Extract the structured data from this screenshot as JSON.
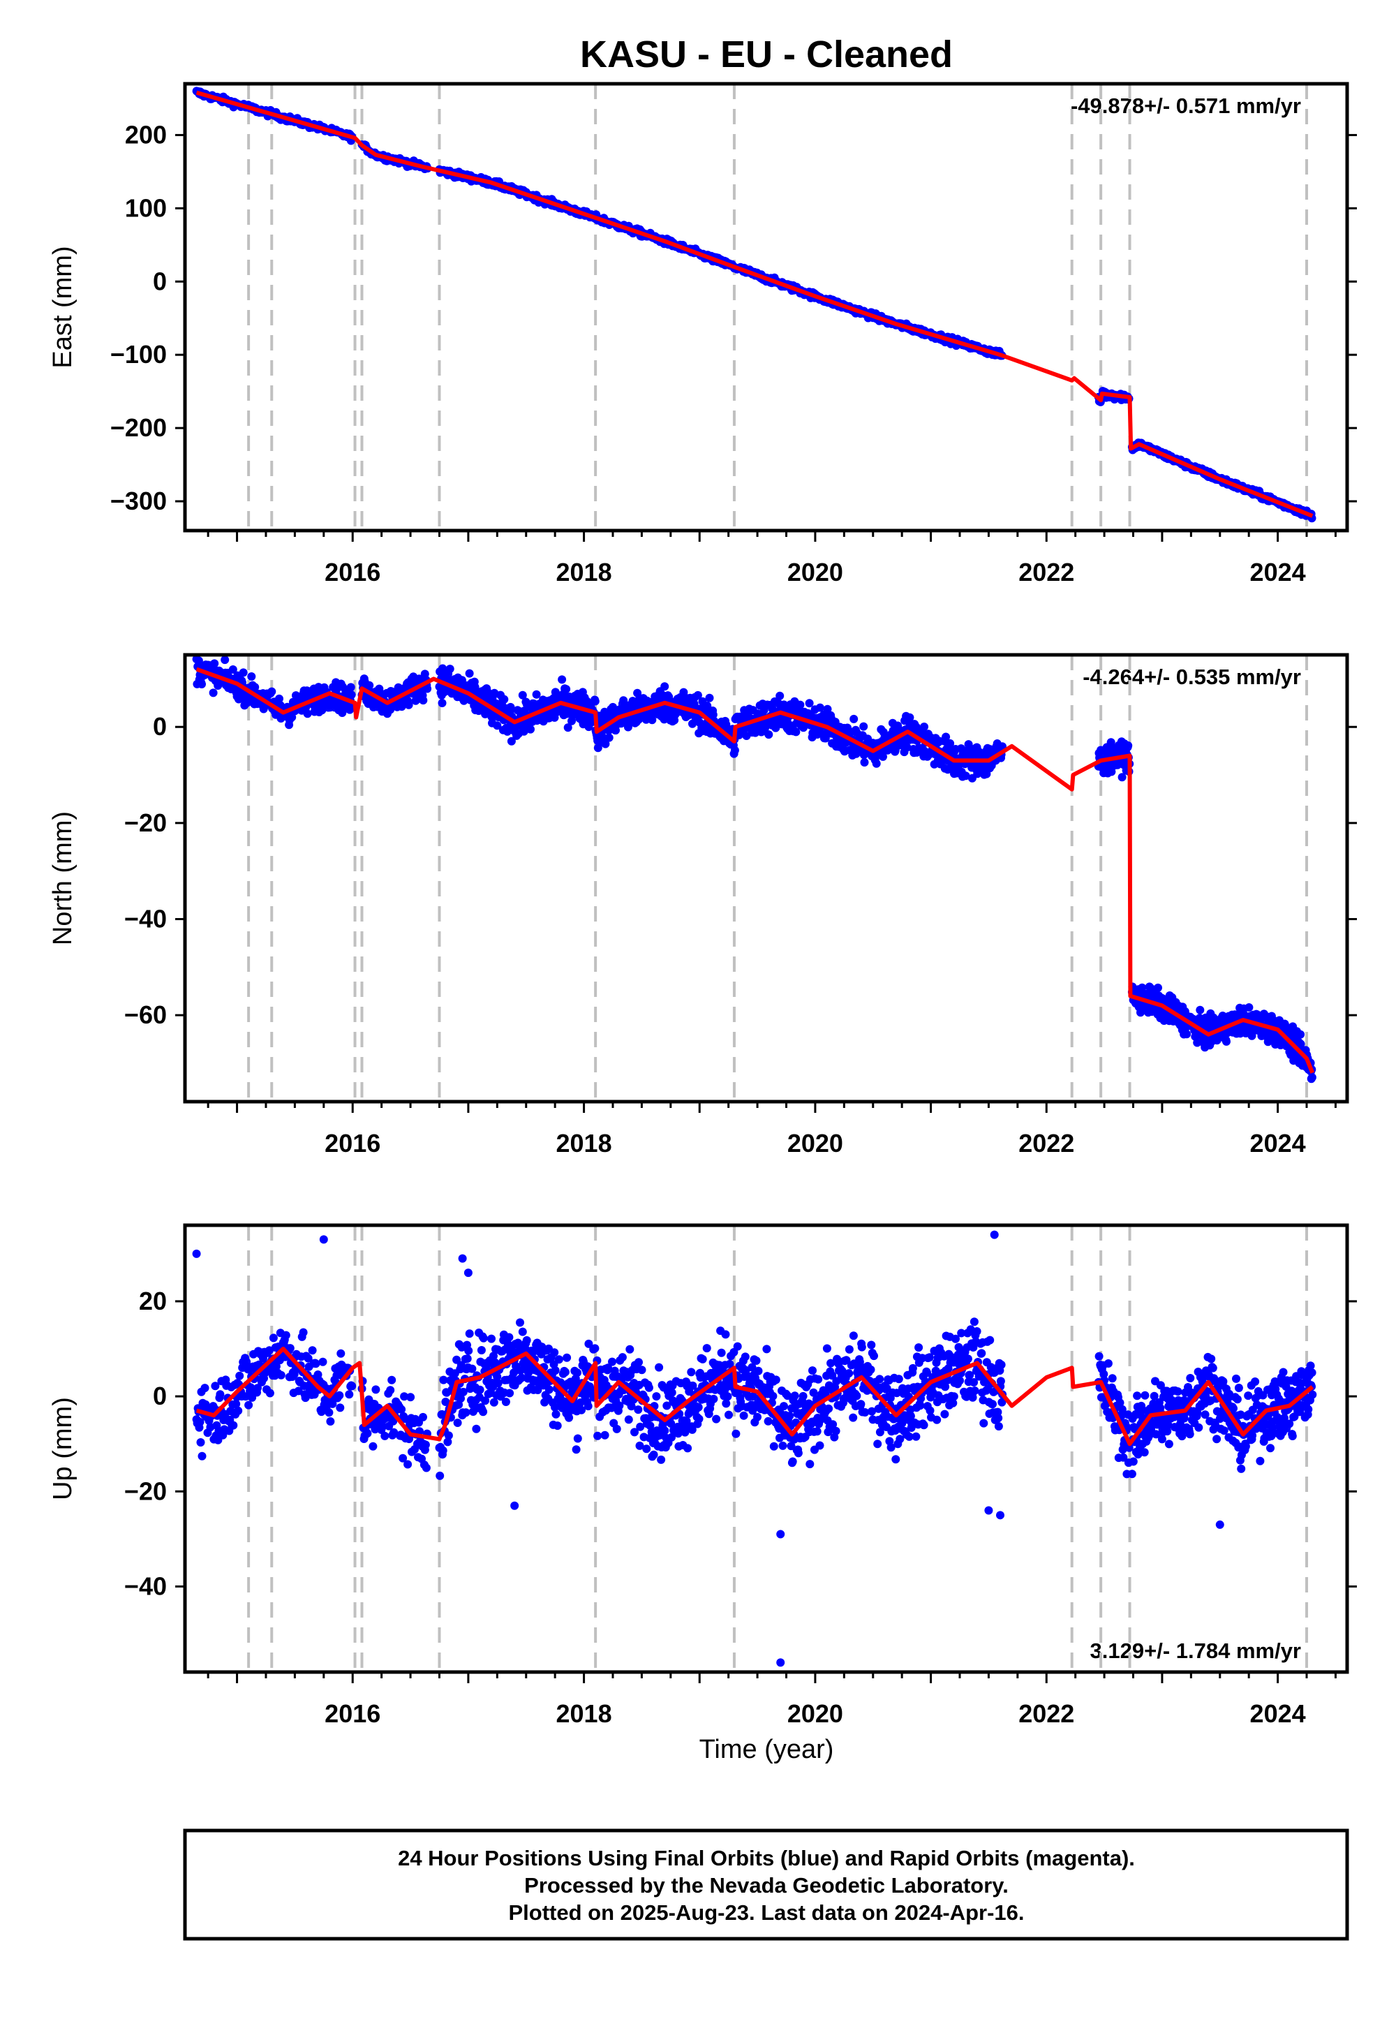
{
  "title": "KASU  - EU - Cleaned",
  "colors": {
    "data_points": "#0000ff",
    "model_line": "#ff0000",
    "event_lines": "#c0c0c0",
    "frame": "#000000"
  },
  "xlabel": "Time (year)",
  "footer": {
    "line1": "24 Hour Positions Using Final Orbits (blue) and Rapid Orbits (magenta).",
    "line2": "Processed by the Nevada Geodetic Laboratory.",
    "line3": "Plotted on 2025-Aug-23. Last data on 2024-Apr-16."
  },
  "chart_data": [
    {
      "type": "scatter",
      "panel": "east",
      "ylabel": "East (mm)",
      "rate_label": "-49.878+/- 0.571 mm/yr",
      "rate_position": "top-right",
      "xlim": [
        2014.55,
        2024.6
      ],
      "ylim": [
        -340,
        270
      ],
      "x_ticks": [
        2016,
        2018,
        2020,
        2022,
        2024
      ],
      "y_ticks": [
        -300,
        -200,
        -100,
        0,
        100,
        200
      ],
      "event_lines": [
        2015.1,
        2015.3,
        2016.02,
        2016.08,
        2016.75,
        2018.1,
        2019.3,
        2022.22,
        2022.47,
        2022.72,
        2024.25
      ],
      "data_segments": [
        {
          "start": 2014.65,
          "end": 2016.0,
          "step": 0.008,
          "noise": 3
        },
        {
          "start": 2016.08,
          "end": 2016.65,
          "step": 0.008,
          "noise": 3
        },
        {
          "start": 2016.75,
          "end": 2021.62,
          "step": 0.006,
          "noise": 3
        },
        {
          "start": 2022.45,
          "end": 2022.72,
          "step": 0.006,
          "noise": 4
        },
        {
          "start": 2022.74,
          "end": 2024.3,
          "step": 0.005,
          "noise": 3
        }
      ],
      "model_line": [
        [
          2014.65,
          258
        ],
        [
          2016.0,
          197
        ],
        [
          2016.02,
          196
        ],
        [
          2016.08,
          186
        ],
        [
          2016.2,
          173
        ],
        [
          2016.6,
          157
        ],
        [
          2017.2,
          135
        ],
        [
          2018.1,
          87
        ],
        [
          2018.7,
          55
        ],
        [
          2019.3,
          20
        ],
        [
          2020.0,
          -20
        ],
        [
          2020.7,
          -58
        ],
        [
          2021.6,
          -100
        ],
        [
          2022.22,
          -135
        ],
        [
          2022.24,
          -132
        ],
        [
          2022.47,
          -162
        ],
        [
          2022.48,
          -153
        ],
        [
          2022.72,
          -158
        ],
        [
          2022.73,
          -228
        ],
        [
          2022.8,
          -222
        ],
        [
          2023.5,
          -270
        ],
        [
          2024.3,
          -320
        ]
      ]
    },
    {
      "type": "scatter",
      "panel": "north",
      "ylabel": "North (mm)",
      "rate_label": "-4.264+/- 0.535 mm/yr",
      "rate_position": "top-right",
      "xlim": [
        2014.55,
        2024.6
      ],
      "ylim": [
        -78,
        15
      ],
      "x_ticks": [
        2016,
        2018,
        2020,
        2022,
        2024
      ],
      "y_ticks": [
        -60,
        -40,
        -20,
        0
      ],
      "event_lines": [
        2015.1,
        2015.3,
        2016.02,
        2016.08,
        2016.75,
        2018.1,
        2019.3,
        2022.22,
        2022.47,
        2022.72,
        2024.25
      ],
      "data_segments": [
        {
          "start": 2014.65,
          "end": 2016.0,
          "step": 0.005,
          "noise": 2
        },
        {
          "start": 2016.08,
          "end": 2016.65,
          "step": 0.005,
          "noise": 2
        },
        {
          "start": 2016.75,
          "end": 2021.62,
          "step": 0.004,
          "noise": 2.5
        },
        {
          "start": 2022.45,
          "end": 2022.72,
          "step": 0.004,
          "noise": 2
        },
        {
          "start": 2022.74,
          "end": 2024.3,
          "step": 0.0035,
          "noise": 2
        }
      ],
      "model_line": [
        [
          2014.65,
          12
        ],
        [
          2015.0,
          9
        ],
        [
          2015.4,
          3
        ],
        [
          2015.8,
          7
        ],
        [
          2016.02,
          5
        ],
        [
          2016.03,
          2
        ],
        [
          2016.08,
          8
        ],
        [
          2016.3,
          5
        ],
        [
          2016.7,
          10
        ],
        [
          2017.0,
          7
        ],
        [
          2017.4,
          1
        ],
        [
          2017.8,
          5
        ],
        [
          2018.1,
          3
        ],
        [
          2018.11,
          -1
        ],
        [
          2018.3,
          2
        ],
        [
          2018.7,
          5
        ],
        [
          2019.0,
          3
        ],
        [
          2019.3,
          -3
        ],
        [
          2019.31,
          0
        ],
        [
          2019.7,
          3
        ],
        [
          2020.1,
          0
        ],
        [
          2020.5,
          -5
        ],
        [
          2020.8,
          -1
        ],
        [
          2021.2,
          -7
        ],
        [
          2021.5,
          -7
        ],
        [
          2021.7,
          -4
        ],
        [
          2022.22,
          -13
        ],
        [
          2022.23,
          -10
        ],
        [
          2022.47,
          -7
        ],
        [
          2022.72,
          -6
        ],
        [
          2022.725,
          -56
        ],
        [
          2023.0,
          -58
        ],
        [
          2023.4,
          -64
        ],
        [
          2023.7,
          -61
        ],
        [
          2024.0,
          -63
        ],
        [
          2024.25,
          -69
        ],
        [
          2024.3,
          -72
        ]
      ]
    },
    {
      "type": "scatter",
      "panel": "up",
      "ylabel": "Up (mm)",
      "rate_label": "3.129+/- 1.784 mm/yr",
      "rate_position": "bottom-right",
      "xlim": [
        2014.55,
        2024.6
      ],
      "ylim": [
        -58,
        36
      ],
      "x_ticks": [
        2016,
        2018,
        2020,
        2022,
        2024
      ],
      "y_ticks": [
        -40,
        -20,
        0,
        20
      ],
      "event_lines": [
        2015.1,
        2015.3,
        2016.02,
        2016.08,
        2016.75,
        2018.1,
        2019.3,
        2022.22,
        2022.47,
        2022.72,
        2024.25
      ],
      "data_segments": [
        {
          "start": 2014.65,
          "end": 2016.0,
          "step": 0.006,
          "noise": 5
        },
        {
          "start": 2016.08,
          "end": 2016.65,
          "step": 0.006,
          "noise": 5
        },
        {
          "start": 2016.75,
          "end": 2021.62,
          "step": 0.0045,
          "noise": 6
        },
        {
          "start": 2022.45,
          "end": 2022.72,
          "step": 0.005,
          "noise": 5
        },
        {
          "start": 2022.74,
          "end": 2024.3,
          "step": 0.004,
          "noise": 5
        }
      ],
      "outliers": [
        [
          2014.65,
          30
        ],
        [
          2015.75,
          33
        ],
        [
          2016.95,
          29
        ],
        [
          2017.0,
          26
        ],
        [
          2017.4,
          -23
        ],
        [
          2019.7,
          -29
        ],
        [
          2019.7,
          -56
        ],
        [
          2021.55,
          34
        ],
        [
          2021.5,
          -24
        ],
        [
          2021.6,
          -25
        ],
        [
          2023.5,
          -27
        ]
      ],
      "model_line": [
        [
          2014.65,
          -3
        ],
        [
          2014.8,
          -4
        ],
        [
          2015.0,
          1
        ],
        [
          2015.4,
          10
        ],
        [
          2015.7,
          2
        ],
        [
          2015.8,
          0
        ],
        [
          2016.0,
          6
        ],
        [
          2016.06,
          7
        ],
        [
          2016.1,
          -6
        ],
        [
          2016.3,
          -2
        ],
        [
          2016.5,
          -8
        ],
        [
          2016.75,
          -9
        ],
        [
          2016.8,
          -6
        ],
        [
          2016.9,
          3
        ],
        [
          2017.1,
          4
        ],
        [
          2017.5,
          9
        ],
        [
          2017.9,
          -1
        ],
        [
          2018.1,
          7
        ],
        [
          2018.11,
          -2
        ],
        [
          2018.3,
          3
        ],
        [
          2018.7,
          -5
        ],
        [
          2018.9,
          -1
        ],
        [
          2019.3,
          6
        ],
        [
          2019.31,
          2
        ],
        [
          2019.5,
          1
        ],
        [
          2019.8,
          -8
        ],
        [
          2020.0,
          -2
        ],
        [
          2020.4,
          4
        ],
        [
          2020.7,
          -4
        ],
        [
          2021.0,
          3
        ],
        [
          2021.4,
          7
        ],
        [
          2021.7,
          -2
        ],
        [
          2022.0,
          4
        ],
        [
          2022.22,
          6
        ],
        [
          2022.23,
          2
        ],
        [
          2022.47,
          3
        ],
        [
          2022.72,
          -10
        ],
        [
          2022.9,
          -4
        ],
        [
          2023.2,
          -3
        ],
        [
          2023.4,
          3
        ],
        [
          2023.7,
          -8
        ],
        [
          2023.9,
          -3
        ],
        [
          2024.1,
          -2
        ],
        [
          2024.3,
          2
        ]
      ]
    }
  ]
}
